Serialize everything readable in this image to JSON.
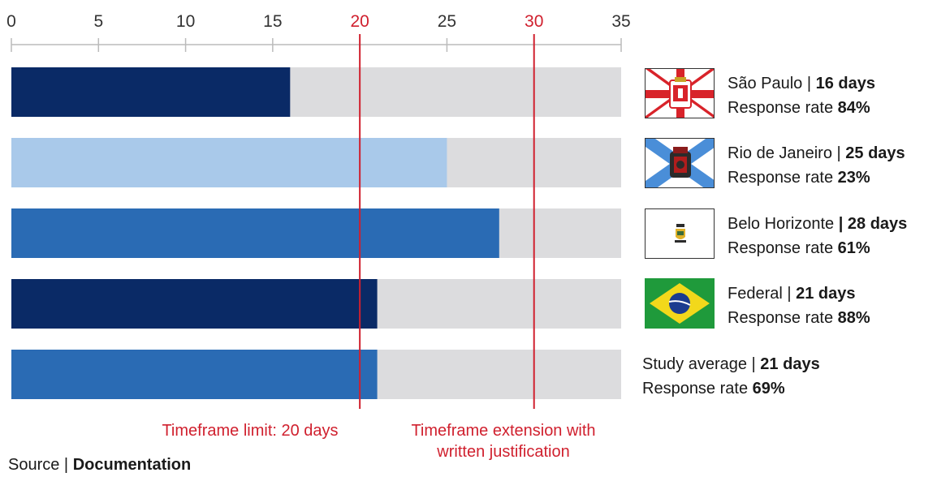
{
  "chart_data": {
    "type": "bar",
    "orientation": "horizontal",
    "xlim": [
      0,
      35
    ],
    "x_ticks": [
      0,
      5,
      10,
      15,
      20,
      25,
      30,
      35
    ],
    "x_ticks_highlighted": [
      20,
      30
    ],
    "categories": [
      "São Paulo",
      "Rio de Janeiro",
      "Belo Horizonte",
      "Federal",
      "Study average"
    ],
    "values": [
      16,
      25,
      28,
      21,
      21
    ],
    "max_value": 35,
    "bar_colors": [
      "#0a2a66",
      "#a9c9ea",
      "#2a6bb4",
      "#0a2a66",
      "#2a6bb4"
    ],
    "track_color": "#dcdcde",
    "reference_lines": [
      {
        "value": 20,
        "label": "Timeframe limit: 20 days"
      },
      {
        "value": 30,
        "label_line1": "Timeframe extension with",
        "label_line2": "written justification"
      }
    ],
    "reference_color": "#d0202e",
    "legend": [
      {
        "name": "São Paulo",
        "separator": " | ",
        "days": "16 days",
        "rate_label": "Response rate ",
        "rate": "84%",
        "flag": "sao-paulo-flag"
      },
      {
        "name": "Rio de Janeiro",
        "separator": " | ",
        "days": "25 days",
        "rate_label": "Response rate ",
        "rate": "23%",
        "flag": "rio-de-janeiro-flag"
      },
      {
        "name": "Belo Horizonte ",
        "separator": "| ",
        "days": "28 days",
        "rate_label": "Response rate ",
        "rate": "61%",
        "flag": "belo-horizonte-flag"
      },
      {
        "name": "Federal",
        "separator": " | ",
        "days": "21 days",
        "rate_label": "Response rate ",
        "rate": "88%",
        "flag": "brazil-flag"
      }
    ],
    "average": {
      "name": "Study average",
      "separator": " | ",
      "days": "21 days",
      "rate_label": "Response rate ",
      "rate": "69%"
    }
  },
  "source": {
    "prefix": "Source | ",
    "bold": "Documentation"
  }
}
